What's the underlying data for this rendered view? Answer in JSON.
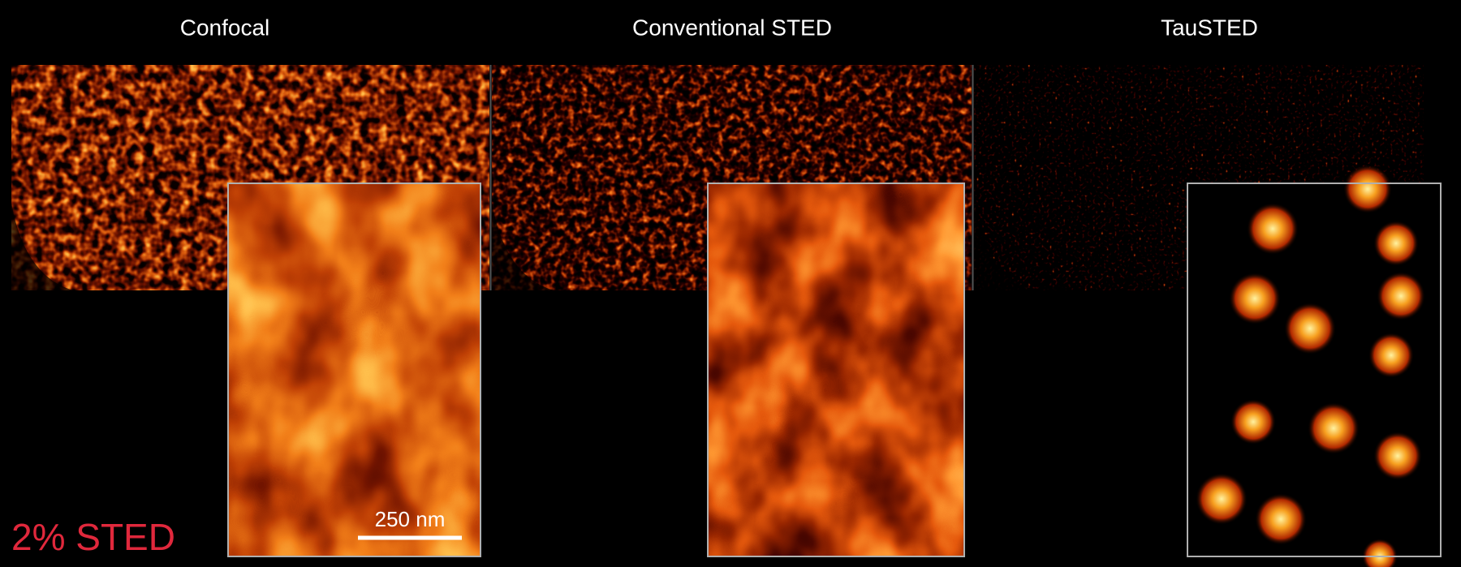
{
  "panels": [
    {
      "title": "Confocal"
    },
    {
      "title": "Conventional STED"
    },
    {
      "title": "TauSTED"
    }
  ],
  "scale_bar": "250 nm",
  "label": "2% STED"
}
